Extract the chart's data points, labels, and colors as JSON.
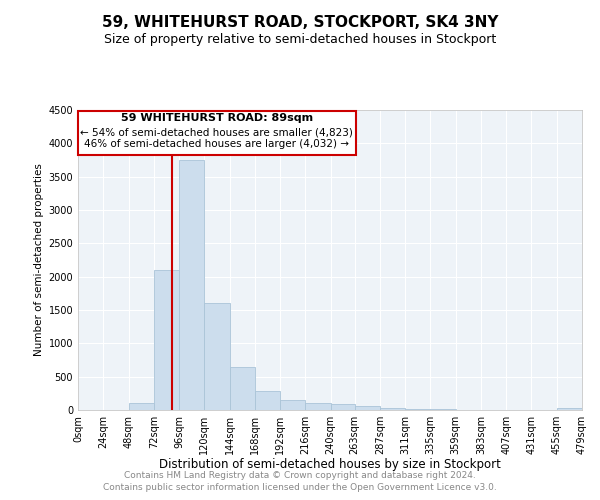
{
  "title": "59, WHITEHURST ROAD, STOCKPORT, SK4 3NY",
  "subtitle": "Size of property relative to semi-detached houses in Stockport",
  "xlabel": "Distribution of semi-detached houses by size in Stockport",
  "ylabel": "Number of semi-detached properties",
  "annotation_title": "59 WHITEHURST ROAD: 89sqm",
  "annotation_line1": "← 54% of semi-detached houses are smaller (4,823)",
  "annotation_line2": "46% of semi-detached houses are larger (4,032) →",
  "property_size": 89,
  "footer1": "Contains HM Land Registry data © Crown copyright and database right 2024.",
  "footer2": "Contains public sector information licensed under the Open Government Licence v3.0.",
  "bar_edges": [
    0,
    24,
    48,
    72,
    96,
    120,
    144,
    168,
    192,
    216,
    240,
    263,
    287,
    311,
    335,
    359,
    383,
    407,
    431,
    455,
    479
  ],
  "bar_heights": [
    0,
    0,
    100,
    2100,
    3750,
    1600,
    650,
    280,
    150,
    110,
    90,
    60,
    35,
    15,
    8,
    4,
    2,
    0,
    0,
    30
  ],
  "bar_color": "#ccdded",
  "bar_edgecolor": "#aac4d8",
  "vline_color": "#cc0000",
  "annotation_box_edgecolor": "#cc0000",
  "bg_color": "#eef3f8",
  "grid_color": "#ffffff",
  "ylim": [
    0,
    4500
  ],
  "yticks": [
    0,
    500,
    1000,
    1500,
    2000,
    2500,
    3000,
    3500,
    4000,
    4500
  ],
  "title_fontsize": 11,
  "subtitle_fontsize": 9,
  "xlabel_fontsize": 8.5,
  "ylabel_fontsize": 7.5,
  "tick_fontsize": 7,
  "annotation_fontsize": 8,
  "footer_fontsize": 6.5
}
